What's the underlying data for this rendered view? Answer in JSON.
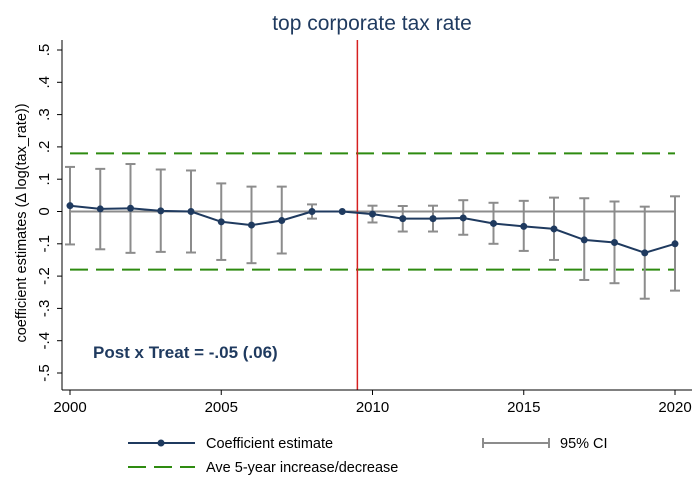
{
  "chart_data": {
    "type": "line",
    "title": "top corporate tax rate",
    "xlabel": "",
    "ylabel": "coefficient estimates (Δ log(tax_rate))",
    "xlim": [
      2000,
      2020
    ],
    "ylim": [
      -0.5,
      0.5
    ],
    "x_ticks": [
      2000,
      2005,
      2010,
      2015,
      2020
    ],
    "x_tick_labels": [
      "2000",
      "2005",
      "2010",
      "2015",
      "2020"
    ],
    "y_ticks": [
      -0.5,
      -0.4,
      -0.3,
      -0.2,
      -0.1,
      0,
      0.1,
      0.2,
      0.3,
      0.4,
      0.5
    ],
    "y_tick_labels": [
      "-.5",
      "-.4",
      "-.3",
      "-.2",
      "-.1",
      "0",
      ".1",
      ".2",
      ".3",
      ".4",
      ".5"
    ],
    "x": [
      2000,
      2001,
      2002,
      2003,
      2004,
      2005,
      2006,
      2007,
      2008,
      2009,
      2010,
      2011,
      2012,
      2013,
      2014,
      2015,
      2016,
      2017,
      2018,
      2019,
      2020
    ],
    "series": [
      {
        "name": "Coefficient estimate",
        "values": [
          0.018,
          0.008,
          0.01,
          0.002,
          0.0,
          -0.032,
          -0.042,
          -0.028,
          0.0,
          0.0,
          -0.008,
          -0.022,
          -0.022,
          -0.02,
          -0.037,
          -0.046,
          -0.054,
          -0.088,
          -0.096,
          -0.128,
          -0.1
        ]
      }
    ],
    "ci": {
      "name": "95% CI",
      "lower": [
        -0.102,
        -0.117,
        -0.128,
        -0.125,
        -0.127,
        -0.15,
        -0.16,
        -0.13,
        -0.022,
        0.0,
        -0.034,
        -0.062,
        -0.062,
        -0.072,
        -0.1,
        -0.122,
        -0.15,
        -0.212,
        -0.222,
        -0.27,
        -0.245
      ],
      "upper": [
        0.138,
        0.132,
        0.147,
        0.13,
        0.127,
        0.087,
        0.077,
        0.077,
        0.022,
        0.0,
        0.018,
        0.017,
        0.018,
        0.035,
        0.027,
        0.033,
        0.043,
        0.041,
        0.031,
        0.015,
        0.047
      ]
    },
    "reference_lines": {
      "zero": 0,
      "ave_change_upper": 0.18,
      "ave_change_lower": -0.18,
      "ave_change_label": "Ave 5-year increase/decrease",
      "treatment_year": 2009.5
    },
    "annotation": "Post x Treat = -.05 (.06)",
    "legend": {
      "placement": "bottom",
      "items": [
        "Coefficient estimate",
        "95% CI",
        "Ave 5-year increase/decrease"
      ]
    },
    "colors": {
      "series": "#1f3a5f",
      "ci": "#8c8c8c",
      "zero": "#8c8c8c",
      "dashed": "#2e8b10",
      "vline": "#d62020",
      "axis": "#000000"
    }
  }
}
